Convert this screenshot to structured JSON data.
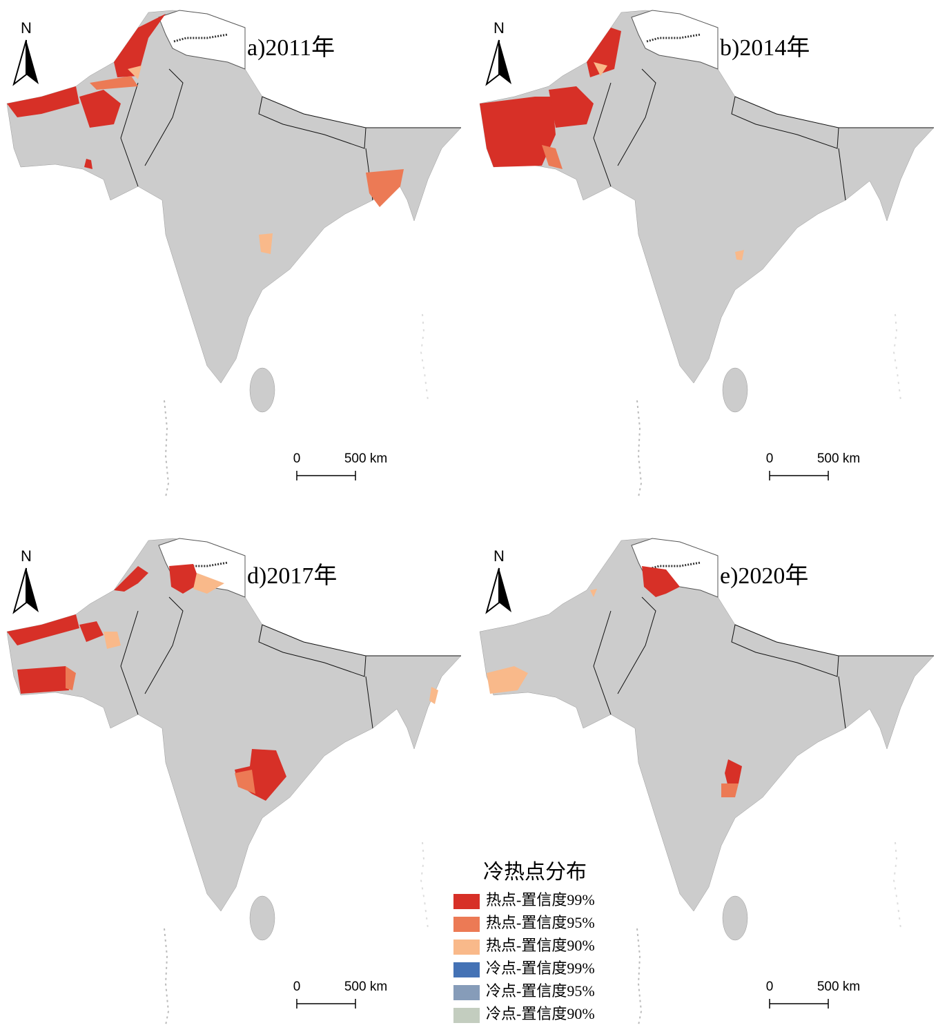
{
  "panels": [
    {
      "title": "a)2011年",
      "north": "N",
      "scale_start": "0",
      "scale_end": "500 km"
    },
    {
      "title": "b)2014年",
      "north": "N",
      "scale_start": "0",
      "scale_end": "500 km"
    },
    {
      "title": "d)2017年",
      "north": "N",
      "scale_start": "0",
      "scale_end": "500 km"
    },
    {
      "title": "e)2020年",
      "north": "N",
      "scale_start": "0",
      "scale_end": "500 km"
    }
  ],
  "legend": {
    "title": "冷热点分布",
    "items": [
      {
        "label": "热点-置信度99%",
        "color": "#d73027"
      },
      {
        "label": "热点-置信度95%",
        "color": "#ec7a55"
      },
      {
        "label": "热点-置信度90%",
        "color": "#f9b98a"
      },
      {
        "label": "冷点-置信度99%",
        "color": "#4472b5"
      },
      {
        "label": "冷点-置信度95%",
        "color": "#869cb9"
      },
      {
        "label": "冷点-置信度90%",
        "color": "#c3cdbf"
      }
    ]
  }
}
